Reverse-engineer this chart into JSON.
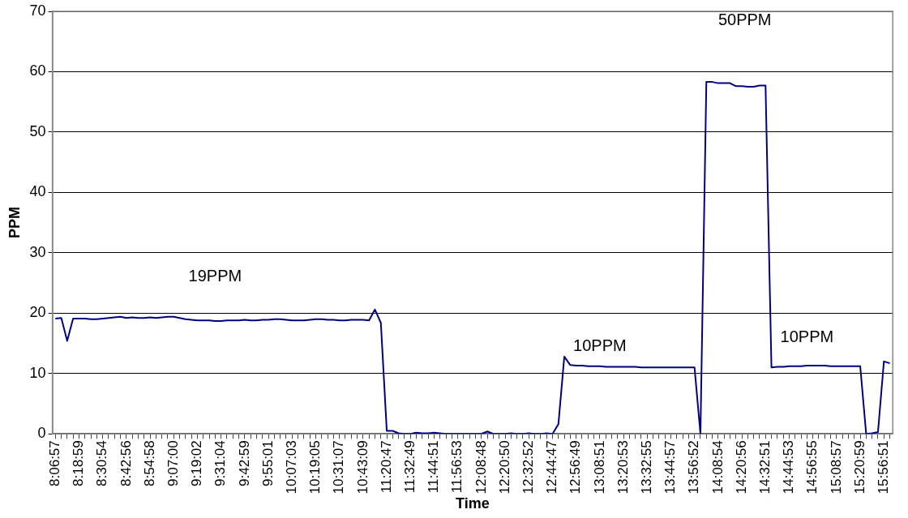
{
  "chart_data": {
    "type": "line",
    "xlabel": "Time",
    "ylabel": "PPM",
    "categories": [
      "8:06:57",
      null,
      null,
      null,
      "8:18:59",
      null,
      null,
      null,
      "8:30:54",
      null,
      null,
      null,
      "8:42:56",
      null,
      null,
      null,
      "8:54:58",
      null,
      null,
      null,
      "9:07:00",
      null,
      null,
      null,
      "9:19:02",
      null,
      null,
      null,
      "9:31:04",
      null,
      null,
      null,
      "9:42:59",
      null,
      null,
      null,
      "9:55:01",
      null,
      null,
      null,
      "10:07:03",
      null,
      null,
      null,
      "10:19:05",
      null,
      null,
      null,
      "10:31:07",
      null,
      null,
      null,
      "10:43:09",
      null,
      null,
      null,
      "11:20:47",
      null,
      null,
      null,
      "11:32:49",
      null,
      null,
      null,
      "11:44:51",
      null,
      null,
      null,
      "11:56:53",
      null,
      null,
      null,
      "12:08:48",
      null,
      null,
      null,
      "12:20:50",
      null,
      null,
      null,
      "12:32:52",
      null,
      null,
      null,
      "12:44:47",
      null,
      null,
      null,
      "12:56:49",
      null,
      null,
      null,
      "13:08:51",
      null,
      null,
      null,
      "13:20:53",
      null,
      null,
      null,
      "13:32:55",
      null,
      null,
      null,
      "13:44:57",
      null,
      null,
      null,
      "13:56:52",
      null,
      null,
      null,
      "14:08:54",
      null,
      null,
      null,
      "14:20:56",
      null,
      null,
      null,
      "14:32:51",
      null,
      null,
      null,
      "14:44:53",
      null,
      null,
      null,
      "14:56:55",
      null,
      null,
      null,
      "15:08:57",
      null,
      null,
      null,
      "15:20:59",
      null,
      null,
      null,
      "15:56:51",
      null
    ],
    "series": [
      {
        "color": "#000080",
        "values": [
          19.1,
          19.2,
          15.4,
          19.1,
          19.1,
          19.1,
          19.0,
          19.0,
          19.1,
          19.2,
          19.3,
          19.4,
          19.2,
          19.3,
          19.2,
          19.2,
          19.3,
          19.2,
          19.3,
          19.4,
          19.4,
          19.2,
          19.0,
          18.9,
          18.8,
          18.8,
          18.8,
          18.7,
          18.7,
          18.8,
          18.8,
          18.8,
          18.9,
          18.8,
          18.8,
          18.9,
          18.9,
          19.0,
          19.0,
          18.9,
          18.8,
          18.8,
          18.8,
          18.9,
          19.0,
          19.0,
          18.9,
          18.9,
          18.8,
          18.8,
          18.9,
          18.9,
          18.9,
          18.8,
          20.6,
          18.4,
          0.5,
          0.5,
          0.1,
          0,
          0,
          0.2,
          0.1,
          0.1,
          0.2,
          0.1,
          0,
          0,
          0,
          0,
          0,
          0,
          0,
          0.4,
          0,
          0,
          0,
          0.1,
          0,
          0,
          0.1,
          0,
          0,
          0.1,
          0,
          1.6,
          12.8,
          11.4,
          11.3,
          11.3,
          11.2,
          11.2,
          11.2,
          11.1,
          11.1,
          11.1,
          11.1,
          11.1,
          11.1,
          11.0,
          11.0,
          11.0,
          11.0,
          11.0,
          11.0,
          11.0,
          11.0,
          11.0,
          11.0,
          0,
          58.3,
          58.3,
          58.1,
          58.1,
          58.1,
          57.6,
          57.6,
          57.5,
          57.5,
          57.7,
          57.7,
          11.0,
          11.1,
          11.1,
          11.2,
          11.2,
          11.2,
          11.3,
          11.3,
          11.3,
          11.3,
          11.2,
          11.2,
          11.2,
          11.2,
          11.2,
          11.2,
          0,
          0.1,
          0.3,
          12.0,
          11.7
        ]
      }
    ],
    "ylim": [
      0,
      70
    ],
    "yticks": [
      0,
      10,
      20,
      30,
      40,
      50,
      60,
      70
    ],
    "grid": "y",
    "marker": "none",
    "line_style": "solid",
    "annotations": [
      "19PPM",
      "10PPM",
      "50PPM",
      "10PPM"
    ]
  }
}
